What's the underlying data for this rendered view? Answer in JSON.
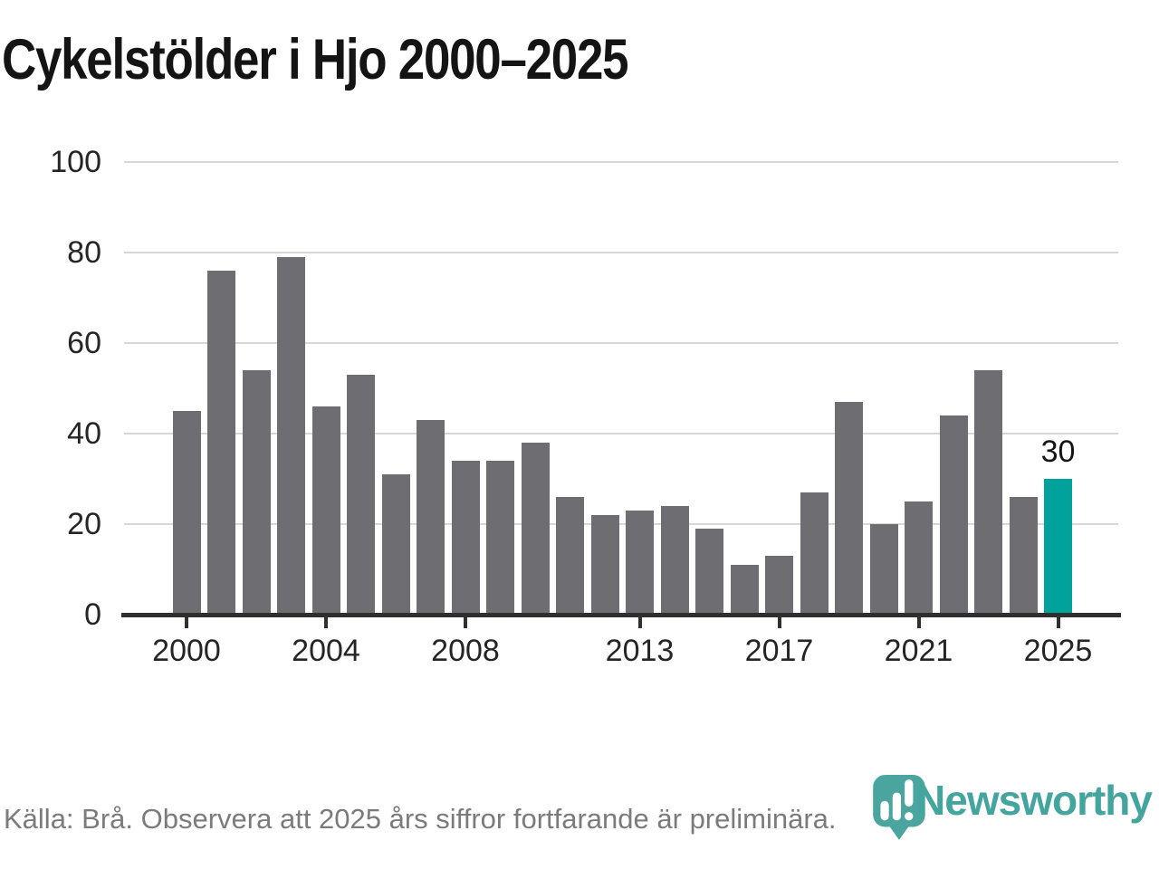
{
  "title": "Cykelstölder i Hjo 2000–2025",
  "chart_data": {
    "type": "bar",
    "title": "Cykelstölder i Hjo 2000–2025",
    "x": [
      2000,
      2001,
      2002,
      2003,
      2004,
      2005,
      2006,
      2007,
      2008,
      2009,
      2010,
      2011,
      2012,
      2013,
      2014,
      2015,
      2016,
      2017,
      2018,
      2019,
      2020,
      2021,
      2022,
      2023,
      2024,
      2025
    ],
    "values": [
      45,
      76,
      54,
      79,
      46,
      53,
      31,
      43,
      34,
      34,
      38,
      26,
      22,
      23,
      24,
      19,
      11,
      13,
      27,
      47,
      20,
      25,
      44,
      54,
      26,
      30
    ],
    "highlight_index": 25,
    "highlight_label": "30",
    "xlabel": "",
    "ylabel": "",
    "ylim": [
      0,
      100
    ],
    "yticks": [
      0,
      20,
      40,
      60,
      80,
      100
    ],
    "xticks": [
      2000,
      2004,
      2008,
      2013,
      2017,
      2021,
      2025
    ],
    "grid": "horizontal",
    "legend": "none",
    "bar_color": "#6d6d72",
    "highlight_color": "#00a29b",
    "axis_color": "#2f2f2f",
    "grid_color": "#d7d7d7"
  },
  "footer": {
    "source_text": "Källa: Brå. Observera att 2025 års siffror fortfarande är preliminära.",
    "logo_text": "Newsworthy",
    "logo_color": "#44a49e",
    "logo_icon": "newsworthy-bubble-barchart-icon"
  }
}
